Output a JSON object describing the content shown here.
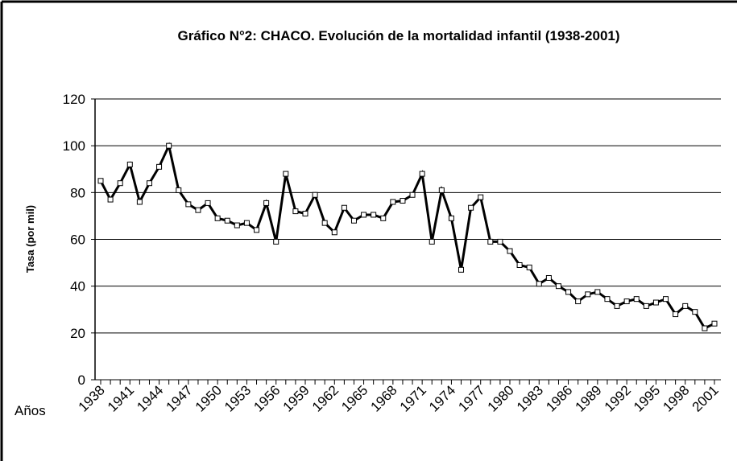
{
  "chart_data": {
    "type": "line",
    "title": "Gráfico N°2: CHACO. Evolución de la mortalidad infantil   (1938-2001)",
    "y_label": "Tasa (por mil)",
    "x_label": "Años",
    "categories": [
      "1938",
      null,
      null,
      "1941",
      null,
      null,
      "1944",
      null,
      null,
      "1947",
      null,
      null,
      "1950",
      null,
      null,
      "1953",
      null,
      null,
      "1956",
      null,
      null,
      "1959",
      null,
      null,
      "1962",
      null,
      null,
      "1965",
      null,
      null,
      "1968",
      null,
      null,
      "1971",
      null,
      null,
      "1974",
      null,
      null,
      "1977",
      null,
      null,
      "1980",
      null,
      null,
      "1983",
      null,
      null,
      "1986",
      null,
      null,
      "1989",
      null,
      null,
      "1992",
      null,
      null,
      "1995",
      null,
      null,
      "1998",
      null,
      null,
      "2001"
    ],
    "series": [
      {
        "name": "Tasa",
        "color": "#000000",
        "values": [
          85,
          77,
          84,
          92,
          76,
          84,
          91,
          100,
          81,
          75,
          72.5,
          75.5,
          69,
          68,
          66,
          67,
          64,
          75.5,
          59,
          88,
          72,
          71,
          79,
          67,
          63,
          73.5,
          68,
          70.5,
          70.5,
          69,
          76,
          76.5,
          79,
          88,
          59,
          81,
          69,
          47,
          73.5,
          78,
          59,
          59,
          55,
          49,
          48,
          41,
          43.5,
          40,
          37.5,
          33.5,
          36.5,
          37.5,
          34.5,
          31.5,
          33.5,
          34.5,
          31.5,
          33,
          34.5,
          28,
          31.5,
          29,
          22,
          24
        ]
      }
    ],
    "ylim": [
      0,
      120
    ],
    "yticks": [
      0,
      20,
      40,
      60,
      80,
      100,
      120
    ],
    "grid": true
  }
}
